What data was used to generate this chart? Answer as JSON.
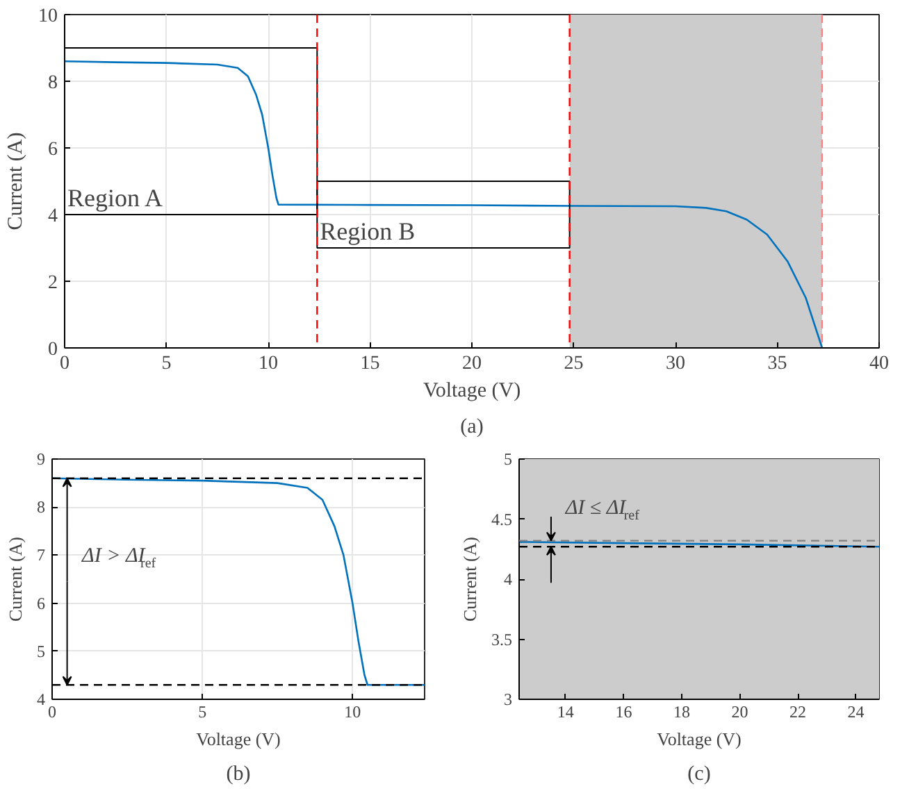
{
  "chart_data": [
    {
      "type": "line",
      "xlabel": "Voltage (V)",
      "ylabel": "Current (A)",
      "xlim": [
        0,
        40
      ],
      "ylim": [
        0,
        10
      ],
      "xticks": [
        0,
        5,
        10,
        15,
        20,
        25,
        30,
        35,
        40
      ],
      "yticks": [
        0,
        2,
        4,
        6,
        8,
        10
      ],
      "grid": true,
      "series": [
        {
          "color": "#0072bd",
          "x": [
            0,
            2.5,
            5,
            7.5,
            8.5,
            9.0,
            9.4,
            9.7,
            10.0,
            10.2,
            10.4,
            10.5,
            15,
            20,
            25,
            30,
            31.5,
            32.5,
            33.5,
            34.5,
            35.5,
            36.4,
            37.2
          ],
          "values": [
            8.6,
            8.57,
            8.55,
            8.5,
            8.4,
            8.15,
            7.6,
            7.0,
            6.0,
            5.2,
            4.5,
            4.3,
            4.29,
            4.28,
            4.26,
            4.25,
            4.2,
            4.1,
            3.85,
            3.4,
            2.6,
            1.5,
            0
          ]
        }
      ],
      "ref_lines": [
        {
          "axis": "x",
          "value": 12.4,
          "color": "#ff0000",
          "line_style": "dashed"
        },
        {
          "axis": "x",
          "value": 24.8,
          "color": "#ff0000",
          "line_style": "dashed"
        },
        {
          "axis": "x",
          "value": 37.2,
          "color": "#ff8080",
          "line_style": "dashed"
        }
      ],
      "bands": [
        {
          "axis": "x",
          "from": 24.8,
          "to": 37.2,
          "color": "#cccccc"
        }
      ],
      "annotations": [
        "Region A",
        "Region B",
        "(a)"
      ]
    },
    {
      "type": "line",
      "xlabel": "Voltage (V)",
      "ylabel": "Current (A)",
      "xlim": [
        0,
        12.4
      ],
      "ylim": [
        4,
        9
      ],
      "xticks": [
        0,
        5,
        10
      ],
      "yticks": [
        4,
        5,
        6,
        7,
        8,
        9
      ],
      "grid": true,
      "series": [
        {
          "color": "#0072bd",
          "x": [
            0,
            2.5,
            5,
            7.5,
            8.5,
            9.0,
            9.4,
            9.7,
            10.0,
            10.2,
            10.4,
            10.5,
            12.4
          ],
          "values": [
            8.6,
            8.57,
            8.55,
            8.5,
            8.4,
            8.15,
            7.6,
            7.0,
            6.0,
            5.2,
            4.5,
            4.3,
            4.3
          ]
        }
      ],
      "ref_lines": [
        {
          "axis": "y",
          "value": 8.6,
          "color": "#000000",
          "line_style": "dashed"
        },
        {
          "axis": "y",
          "value": 4.3,
          "color": "#000000",
          "line_style": "dashed"
        }
      ],
      "annotations": [
        {
          "text": "ΔI > ΔI$_{ref}$",
          "x": 0.5,
          "y": 8.6
        },
        "(b)"
      ]
    },
    {
      "type": "line",
      "xlabel": "Voltage (V)",
      "ylabel": "Current (A)",
      "xlim": [
        12.4,
        24.8
      ],
      "ylim": [
        3,
        5
      ],
      "xticks": [
        14,
        16,
        18,
        20,
        22,
        24
      ],
      "yticks": [
        3,
        3.5,
        4,
        4.5,
        5
      ],
      "grid": true,
      "series": [
        {
          "color": "#0072bd",
          "x": [
            12.4,
            16,
            20,
            24.8
          ],
          "values": [
            4.31,
            4.3,
            4.29,
            4.27
          ]
        }
      ],
      "ref_lines": [
        {
          "axis": "y",
          "value": 4.32,
          "color": "#808080",
          "line_style": "dashed"
        },
        {
          "axis": "y",
          "value": 4.27,
          "color": "#000000",
          "line_style": "dashed"
        }
      ],
      "bands": [
        {
          "axis": "x",
          "from": 12.4,
          "to": 24.8,
          "color": "#cccccc"
        }
      ],
      "annotations": [
        {
          "text": "ΔI ≤ ΔI$_{ref}$",
          "x": 13.5,
          "y": 4.32
        },
        "(c)"
      ]
    }
  ]
}
